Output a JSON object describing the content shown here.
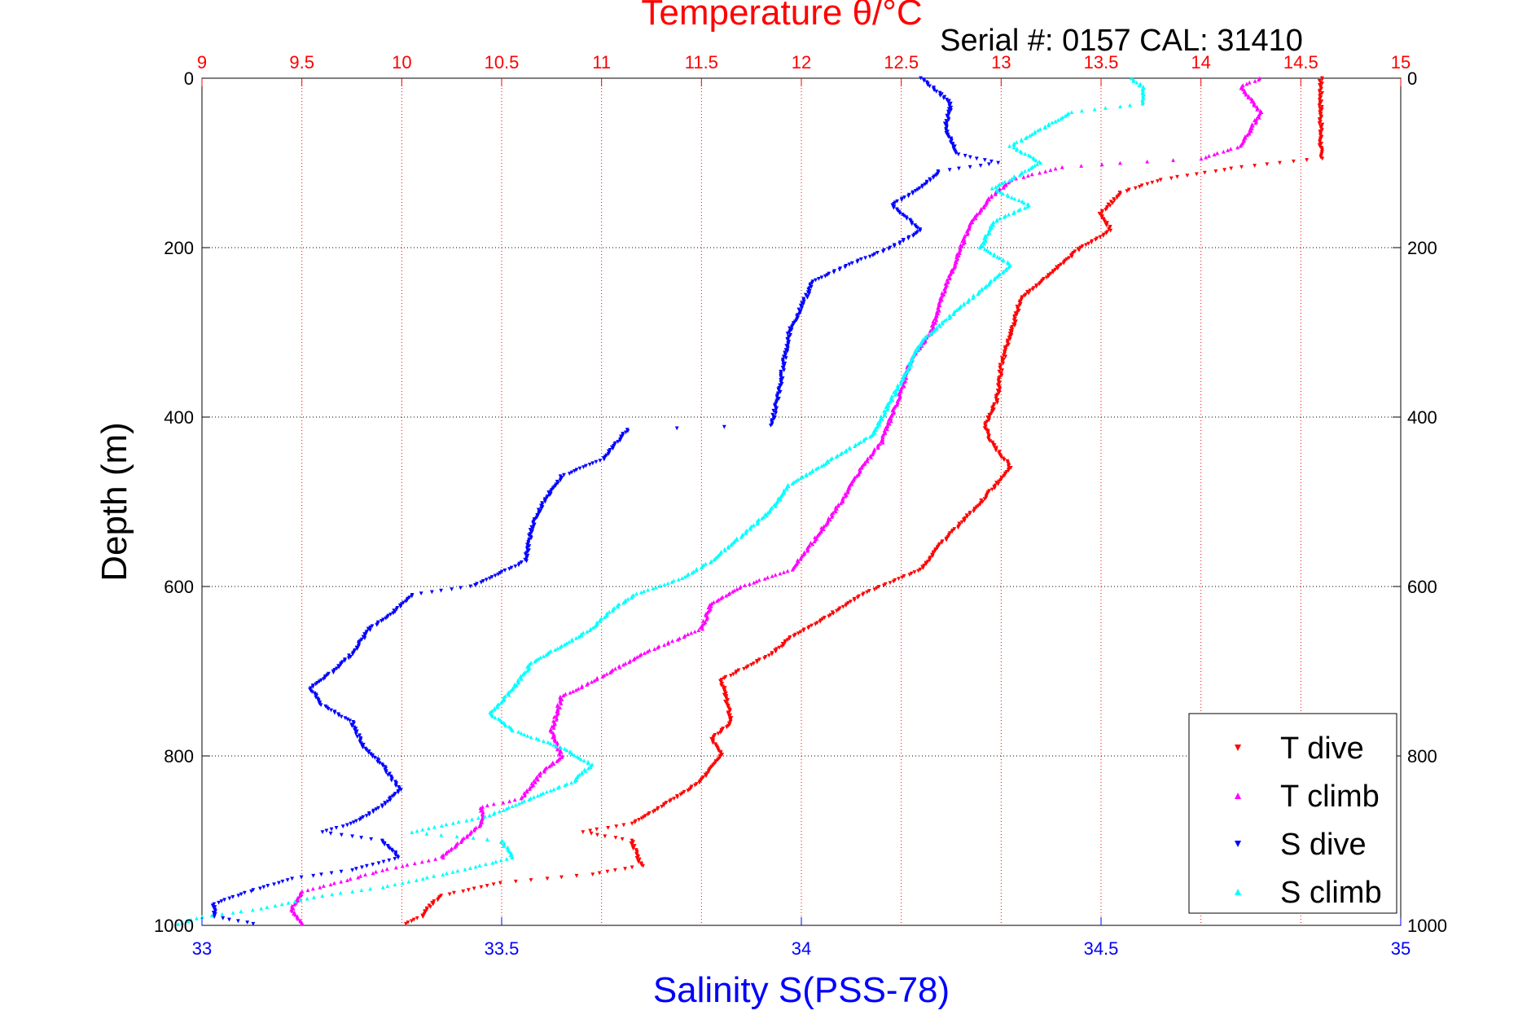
{
  "chart_data": {
    "type": "scatter",
    "title": "Temperature θ/°C",
    "subtitle": "Serial #: 0157  CAL: 31410",
    "ylabel": "Depth (m)",
    "xlabel_bottom": "Salinity S(PSS-78)",
    "xlabel_top": "Temperature θ/°C",
    "y_ticks": [
      "0",
      "200",
      "400",
      "600",
      "800",
      "1000"
    ],
    "y_tick_values": [
      0,
      200,
      400,
      600,
      800,
      1000
    ],
    "ylim": [
      1000,
      0
    ],
    "x_bottom_ticks": [
      "33",
      "33.5",
      "34",
      "34.5",
      "35"
    ],
    "x_bottom_tick_values": [
      33,
      33.5,
      34,
      34.5,
      35
    ],
    "x_bottom_lim": [
      33,
      35
    ],
    "x_top_ticks": [
      "9",
      "9.5",
      "10",
      "10.5",
      "11",
      "11.5",
      "12",
      "12.5",
      "13",
      "13.5",
      "14",
      "14.5",
      "15"
    ],
    "x_top_tick_values": [
      9,
      9.5,
      10,
      10.5,
      11,
      11.5,
      12,
      12.5,
      13,
      13.5,
      14,
      14.5,
      15
    ],
    "x_top_lim": [
      9,
      15
    ],
    "grid": true,
    "legend_position": "bottom-right",
    "colors": {
      "t_dive": "#ff0000",
      "t_climb": "#ff00ff",
      "s_dive": "#0000ff",
      "s_climb": "#00ffff",
      "top_axis": "#ff0000",
      "bottom_axis": "#0000ff"
    },
    "series": [
      {
        "name": "T dive",
        "axis": "top",
        "marker": "down-triangle",
        "color": "#ff0000",
        "points": [
          [
            14.6,
            0
          ],
          [
            14.6,
            50
          ],
          [
            14.6,
            95
          ],
          [
            14.2,
            105
          ],
          [
            13.8,
            120
          ],
          [
            13.6,
            135
          ],
          [
            13.5,
            160
          ],
          [
            13.55,
            180
          ],
          [
            13.4,
            200
          ],
          [
            13.3,
            220
          ],
          [
            13.2,
            240
          ],
          [
            13.1,
            260
          ],
          [
            13.05,
            300
          ],
          [
            13.0,
            340
          ],
          [
            12.98,
            380
          ],
          [
            12.92,
            410
          ],
          [
            12.95,
            430
          ],
          [
            13.05,
            460
          ],
          [
            12.9,
            500
          ],
          [
            12.7,
            550
          ],
          [
            12.6,
            580
          ],
          [
            12.3,
            610
          ],
          [
            12.1,
            640
          ],
          [
            11.95,
            660
          ],
          [
            11.85,
            680
          ],
          [
            11.6,
            710
          ],
          [
            11.65,
            760
          ],
          [
            11.55,
            780
          ],
          [
            11.6,
            800
          ],
          [
            11.5,
            830
          ],
          [
            11.3,
            860
          ],
          [
            11.15,
            880
          ],
          [
            10.9,
            890
          ],
          [
            11.15,
            900
          ],
          [
            11.2,
            930
          ],
          [
            10.95,
            940
          ],
          [
            10.5,
            950
          ],
          [
            10.2,
            965
          ],
          [
            10.15,
            975
          ],
          [
            10.1,
            990
          ],
          [
            10.0,
            1000
          ]
        ]
      },
      {
        "name": "T climb",
        "axis": "top",
        "marker": "up-triangle",
        "color": "#ff00ff",
        "points": [
          [
            14.3,
            0
          ],
          [
            14.2,
            10
          ],
          [
            14.3,
            40
          ],
          [
            14.2,
            80
          ],
          [
            14.0,
            95
          ],
          [
            13.6,
            100
          ],
          [
            13.3,
            105
          ],
          [
            13.05,
            120
          ],
          [
            12.95,
            140
          ],
          [
            12.85,
            170
          ],
          [
            12.8,
            200
          ],
          [
            12.75,
            230
          ],
          [
            12.7,
            260
          ],
          [
            12.65,
            300
          ],
          [
            12.55,
            330
          ],
          [
            12.5,
            370
          ],
          [
            12.45,
            400
          ],
          [
            12.4,
            430
          ],
          [
            12.3,
            460
          ],
          [
            12.2,
            500
          ],
          [
            12.05,
            550
          ],
          [
            11.95,
            580
          ],
          [
            11.7,
            600
          ],
          [
            11.55,
            620
          ],
          [
            11.5,
            650
          ],
          [
            11.2,
            680
          ],
          [
            11.05,
            700
          ],
          [
            10.8,
            730
          ],
          [
            10.75,
            770
          ],
          [
            10.8,
            800
          ],
          [
            10.7,
            820
          ],
          [
            10.6,
            850
          ],
          [
            10.4,
            860
          ],
          [
            10.4,
            880
          ],
          [
            10.3,
            900
          ],
          [
            10.2,
            920
          ],
          [
            9.9,
            935
          ],
          [
            9.75,
            945
          ],
          [
            9.5,
            960
          ],
          [
            9.45,
            980
          ],
          [
            9.5,
            1000
          ]
        ]
      },
      {
        "name": "S dive",
        "axis": "bottom",
        "marker": "down-triangle",
        "color": "#0000ff",
        "points": [
          [
            34.2,
            0
          ],
          [
            34.25,
            30
          ],
          [
            34.24,
            60
          ],
          [
            34.26,
            90
          ],
          [
            34.33,
            100
          ],
          [
            34.23,
            110
          ],
          [
            34.2,
            130
          ],
          [
            34.15,
            150
          ],
          [
            34.2,
            180
          ],
          [
            34.15,
            200
          ],
          [
            34.08,
            220
          ],
          [
            34.02,
            240
          ],
          [
            34.0,
            270
          ],
          [
            33.98,
            300
          ],
          [
            33.97,
            340
          ],
          [
            33.96,
            380
          ],
          [
            33.95,
            410
          ],
          [
            33.71,
            415
          ],
          [
            33.67,
            450
          ],
          [
            33.6,
            470
          ],
          [
            33.57,
            500
          ],
          [
            33.55,
            530
          ],
          [
            33.54,
            570
          ],
          [
            33.45,
            600
          ],
          [
            33.35,
            610
          ],
          [
            33.32,
            630
          ],
          [
            33.28,
            650
          ],
          [
            33.25,
            680
          ],
          [
            33.22,
            700
          ],
          [
            33.18,
            720
          ],
          [
            33.2,
            740
          ],
          [
            33.25,
            760
          ],
          [
            33.27,
            790
          ],
          [
            33.3,
            810
          ],
          [
            33.33,
            840
          ],
          [
            33.3,
            860
          ],
          [
            33.25,
            880
          ],
          [
            33.2,
            890
          ],
          [
            33.3,
            900
          ],
          [
            33.33,
            920
          ],
          [
            33.25,
            935
          ],
          [
            33.15,
            945
          ],
          [
            33.08,
            960
          ],
          [
            33.02,
            975
          ],
          [
            33.02,
            990
          ],
          [
            33.1,
            1000
          ]
        ]
      },
      {
        "name": "S climb",
        "axis": "bottom",
        "marker": "up-triangle",
        "color": "#00ffff",
        "points": [
          [
            34.55,
            0
          ],
          [
            34.57,
            10
          ],
          [
            34.57,
            30
          ],
          [
            34.45,
            40
          ],
          [
            34.4,
            60
          ],
          [
            34.35,
            80
          ],
          [
            34.4,
            100
          ],
          [
            34.32,
            130
          ],
          [
            34.38,
            150
          ],
          [
            34.32,
            170
          ],
          [
            34.3,
            200
          ],
          [
            34.35,
            220
          ],
          [
            34.3,
            250
          ],
          [
            34.25,
            280
          ],
          [
            34.2,
            310
          ],
          [
            34.18,
            340
          ],
          [
            34.15,
            380
          ],
          [
            34.12,
            420
          ],
          [
            34.05,
            450
          ],
          [
            33.98,
            480
          ],
          [
            33.95,
            510
          ],
          [
            33.9,
            540
          ],
          [
            33.85,
            570
          ],
          [
            33.8,
            590
          ],
          [
            33.72,
            610
          ],
          [
            33.68,
            630
          ],
          [
            33.65,
            650
          ],
          [
            33.6,
            670
          ],
          [
            33.55,
            690
          ],
          [
            33.52,
            720
          ],
          [
            33.48,
            750
          ],
          [
            33.52,
            770
          ],
          [
            33.6,
            790
          ],
          [
            33.65,
            810
          ],
          [
            33.62,
            830
          ],
          [
            33.55,
            850
          ],
          [
            33.48,
            870
          ],
          [
            33.35,
            890
          ],
          [
            33.5,
            900
          ],
          [
            33.52,
            920
          ],
          [
            33.4,
            940
          ],
          [
            33.3,
            955
          ],
          [
            33.2,
            965
          ],
          [
            33.1,
            980
          ],
          [
            33.0,
            990
          ],
          [
            32.95,
            1000
          ]
        ]
      }
    ]
  }
}
